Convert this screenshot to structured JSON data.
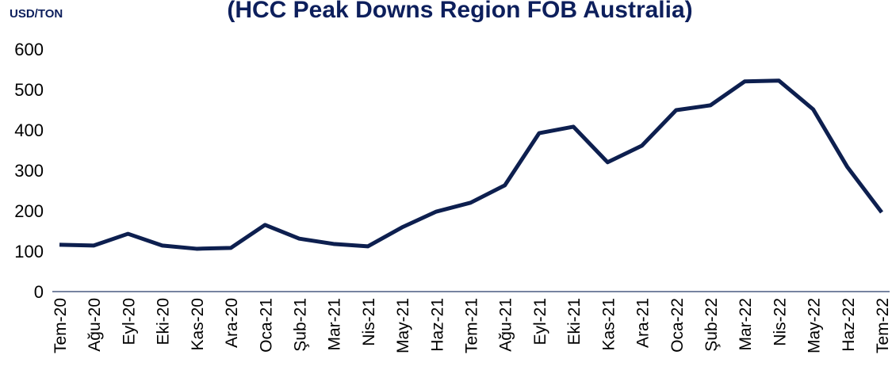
{
  "chart_data": {
    "type": "line",
    "title": "(HCC Peak Downs Region FOB Australia)",
    "y_label": "USD/TON",
    "categories": [
      "Tem-20",
      "Ağu-20",
      "Eyl-20",
      "Eki-20",
      "Kas-20",
      "Ara-20",
      "Oca-21",
      "Şub-21",
      "Mar-21",
      "Nis-21",
      "May-21",
      "Haz-21",
      "Tem-21",
      "Ağu-21",
      "Eyl-21",
      "Eki-21",
      "Kas-21",
      "Ara-21",
      "Oca-22",
      "Şub-22",
      "Mar-22",
      "Nis-22",
      "May-22",
      "Haz-22",
      "Tem-22"
    ],
    "series": [
      {
        "name": "HCC",
        "color": "#0d1f4f",
        "values": [
          116,
          114,
          143,
          114,
          106,
          108,
          165,
          131,
          118,
          112,
          159,
          198,
          220,
          263,
          392,
          408,
          320,
          361,
          449,
          461,
          520,
          522,
          451,
          308,
          196
        ]
      }
    ],
    "ylim": [
      0,
      600
    ],
    "yticks": [
      0,
      100,
      200,
      300,
      400,
      500,
      600
    ],
    "grid": false
  }
}
